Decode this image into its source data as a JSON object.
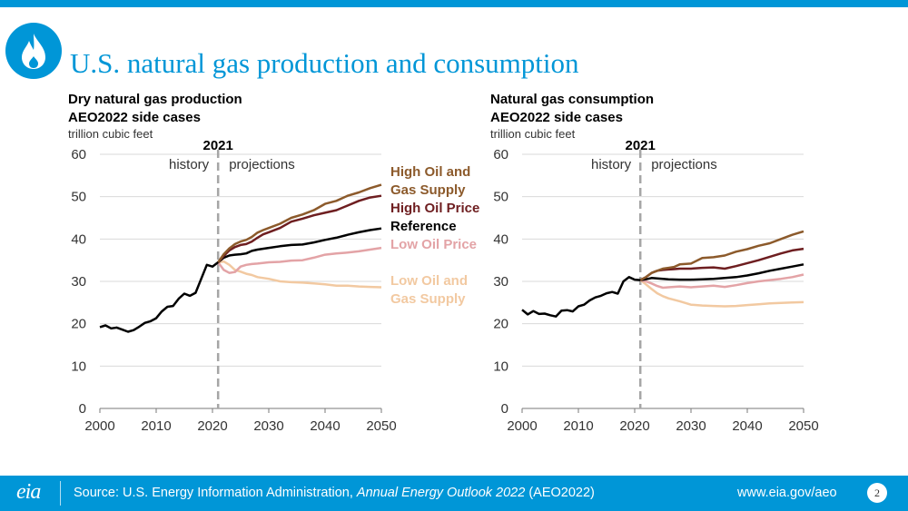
{
  "page": {
    "title": "U.S. natural gas production and consumption",
    "logo_icon": "flame-icon",
    "accent_color": "#0096d7"
  },
  "footer": {
    "eia_logo": "eia",
    "source_prefix": "Source: U.S. Energy Information Administration, ",
    "source_italic": "Annual Energy Outlook 2022",
    "source_suffix": " (AEO2022)",
    "url": "www.eia.gov/aeo",
    "page_number": "2"
  },
  "chart_data": [
    {
      "type": "line",
      "title": "Dry natural gas production",
      "subtitle": "AEO2022 side cases",
      "units": "trillion cubic feet",
      "divider_year": 2021,
      "divider_label": "2021",
      "history_label": "history",
      "projections_label": "projections",
      "xlim": [
        2000,
        2050
      ],
      "ylim": [
        0,
        60
      ],
      "x_ticks": [
        2000,
        2010,
        2020,
        2030,
        2040,
        2050
      ],
      "y_ticks": [
        0,
        10,
        20,
        30,
        40,
        50,
        60
      ],
      "grid": "horizontal",
      "legend": "direct labels at right",
      "history": {
        "x": [
          2000,
          2001,
          2002,
          2003,
          2004,
          2005,
          2006,
          2007,
          2008,
          2009,
          2010,
          2011,
          2012,
          2013,
          2014,
          2015,
          2016,
          2017,
          2018,
          2019,
          2020,
          2021
        ],
        "y": [
          19.2,
          19.6,
          18.9,
          19.1,
          18.6,
          18.1,
          18.5,
          19.3,
          20.2,
          20.6,
          21.3,
          22.9,
          24.0,
          24.2,
          25.9,
          27.1,
          26.6,
          27.3,
          30.6,
          33.9,
          33.5,
          34.5
        ]
      },
      "series": [
        {
          "name": "High Oil and Gas Supply",
          "color": "#8c5a2b",
          "x": [
            2021,
            2022,
            2023,
            2024,
            2025,
            2026,
            2027,
            2028,
            2029,
            2030,
            2032,
            2034,
            2036,
            2038,
            2040,
            2042,
            2044,
            2046,
            2048,
            2050
          ],
          "y": [
            34.5,
            36.4,
            37.8,
            38.8,
            39.4,
            39.8,
            40.5,
            41.5,
            42.1,
            42.6,
            43.6,
            45.0,
            45.8,
            46.8,
            48.3,
            49.0,
            50.2,
            51.0,
            52.0,
            52.8
          ]
        },
        {
          "name": "High Oil Price",
          "color": "#6e1e20",
          "x": [
            2021,
            2022,
            2023,
            2024,
            2025,
            2026,
            2027,
            2028,
            2029,
            2030,
            2032,
            2034,
            2036,
            2038,
            2040,
            2042,
            2044,
            2046,
            2048,
            2050
          ],
          "y": [
            34.5,
            36.0,
            37.3,
            38.1,
            38.6,
            38.8,
            39.4,
            40.3,
            41.1,
            41.6,
            42.6,
            44.1,
            44.8,
            45.6,
            46.2,
            46.8,
            47.9,
            49.0,
            49.8,
            50.2
          ]
        },
        {
          "name": "Reference",
          "color": "#000000",
          "x": [
            2021,
            2022,
            2023,
            2024,
            2025,
            2026,
            2027,
            2028,
            2030,
            2032,
            2034,
            2036,
            2038,
            2040,
            2042,
            2044,
            2046,
            2048,
            2050
          ],
          "y": [
            34.5,
            35.6,
            36.1,
            36.3,
            36.4,
            36.6,
            37.2,
            37.5,
            37.9,
            38.3,
            38.6,
            38.7,
            39.2,
            39.8,
            40.3,
            41.0,
            41.6,
            42.1,
            42.5
          ]
        },
        {
          "name": "Low Oil Price",
          "color": "#e3a3a6",
          "x": [
            2021,
            2022,
            2023,
            2024,
            2025,
            2026,
            2027,
            2028,
            2030,
            2032,
            2034,
            2036,
            2038,
            2040,
            2042,
            2044,
            2046,
            2048,
            2050
          ],
          "y": [
            34.5,
            32.7,
            32.0,
            32.2,
            33.5,
            33.9,
            34.1,
            34.2,
            34.5,
            34.6,
            34.9,
            35.0,
            35.6,
            36.3,
            36.6,
            36.8,
            37.1,
            37.5,
            37.9
          ]
        },
        {
          "name": "Low Oil and Gas Supply",
          "color": "#f2c9a1",
          "x": [
            2021,
            2022,
            2023,
            2024,
            2025,
            2026,
            2027,
            2028,
            2030,
            2032,
            2034,
            2036,
            2038,
            2040,
            2042,
            2044,
            2046,
            2048,
            2050
          ],
          "y": [
            34.5,
            34.7,
            33.9,
            32.7,
            32.3,
            31.8,
            31.5,
            31.0,
            30.6,
            30.0,
            29.8,
            29.7,
            29.5,
            29.3,
            29.0,
            29.0,
            28.8,
            28.7,
            28.6
          ]
        }
      ],
      "labels": [
        "High Oil and",
        "Gas Supply",
        "High Oil Price",
        "Reference",
        "Low Oil Price",
        "Low Oil and",
        "Gas Supply"
      ]
    },
    {
      "type": "line",
      "title": "Natural gas consumption",
      "subtitle": "AEO2022 side cases",
      "units": "trillion cubic feet",
      "divider_year": 2021,
      "divider_label": "2021",
      "history_label": "history",
      "projections_label": "projections",
      "xlim": [
        2000,
        2050
      ],
      "ylim": [
        0,
        60
      ],
      "x_ticks": [
        2000,
        2010,
        2020,
        2030,
        2040,
        2050
      ],
      "y_ticks": [
        0,
        10,
        20,
        30,
        40,
        50,
        60
      ],
      "grid": "horizontal",
      "legend": "none (shared with left chart)",
      "history": {
        "x": [
          2000,
          2001,
          2002,
          2003,
          2004,
          2005,
          2006,
          2007,
          2008,
          2009,
          2010,
          2011,
          2012,
          2013,
          2014,
          2015,
          2016,
          2017,
          2018,
          2019,
          2020,
          2021
        ],
        "y": [
          23.3,
          22.2,
          23.0,
          22.3,
          22.4,
          22.0,
          21.7,
          23.1,
          23.2,
          22.9,
          24.1,
          24.5,
          25.5,
          26.2,
          26.6,
          27.2,
          27.5,
          27.1,
          30.0,
          31.0,
          30.4,
          30.3
        ]
      },
      "series": [
        {
          "name": "High Oil and Gas Supply",
          "color": "#8c5a2b",
          "x": [
            2021,
            2022,
            2023,
            2024,
            2025,
            2026,
            2027,
            2028,
            2030,
            2032,
            2034,
            2036,
            2038,
            2040,
            2042,
            2044,
            2046,
            2048,
            2050
          ],
          "y": [
            30.3,
            31.0,
            32.0,
            32.5,
            33.0,
            33.2,
            33.4,
            34.0,
            34.2,
            35.5,
            35.7,
            36.1,
            37.0,
            37.6,
            38.4,
            39.0,
            40.0,
            41.0,
            41.8
          ]
        },
        {
          "name": "High Oil Price",
          "color": "#6e1e20",
          "x": [
            2021,
            2022,
            2023,
            2024,
            2025,
            2026,
            2027,
            2028,
            2030,
            2032,
            2034,
            2036,
            2038,
            2040,
            2042,
            2044,
            2046,
            2048,
            2050
          ],
          "y": [
            30.3,
            31.0,
            32.0,
            32.5,
            32.7,
            32.8,
            32.9,
            33.0,
            33.0,
            33.2,
            33.3,
            33.0,
            33.6,
            34.3,
            35.0,
            35.8,
            36.6,
            37.3,
            37.7
          ]
        },
        {
          "name": "Reference",
          "color": "#000000",
          "x": [
            2021,
            2022,
            2023,
            2024,
            2025,
            2026,
            2028,
            2030,
            2032,
            2034,
            2036,
            2038,
            2040,
            2042,
            2044,
            2046,
            2048,
            2050
          ],
          "y": [
            30.3,
            30.5,
            30.8,
            30.7,
            30.6,
            30.5,
            30.4,
            30.4,
            30.5,
            30.6,
            30.8,
            31.0,
            31.4,
            31.9,
            32.5,
            33.0,
            33.5,
            34.0
          ]
        },
        {
          "name": "Low Oil Price",
          "color": "#e3a3a6",
          "x": [
            2021,
            2022,
            2023,
            2024,
            2025,
            2026,
            2028,
            2030,
            2032,
            2034,
            2036,
            2038,
            2040,
            2042,
            2044,
            2046,
            2048,
            2050
          ],
          "y": [
            30.3,
            30.0,
            29.5,
            28.9,
            28.5,
            28.6,
            28.8,
            28.6,
            28.8,
            29.0,
            28.7,
            29.1,
            29.6,
            30.0,
            30.3,
            30.6,
            31.0,
            31.6
          ]
        },
        {
          "name": "Low Oil and Gas Supply",
          "color": "#f2c9a1",
          "x": [
            2021,
            2022,
            2023,
            2024,
            2025,
            2026,
            2028,
            2030,
            2032,
            2034,
            2036,
            2038,
            2040,
            2042,
            2044,
            2046,
            2048,
            2050
          ],
          "y": [
            30.3,
            29.3,
            28.2,
            27.2,
            26.5,
            26.0,
            25.3,
            24.5,
            24.3,
            24.2,
            24.1,
            24.2,
            24.4,
            24.6,
            24.8,
            24.9,
            25.0,
            25.1
          ]
        }
      ]
    }
  ]
}
